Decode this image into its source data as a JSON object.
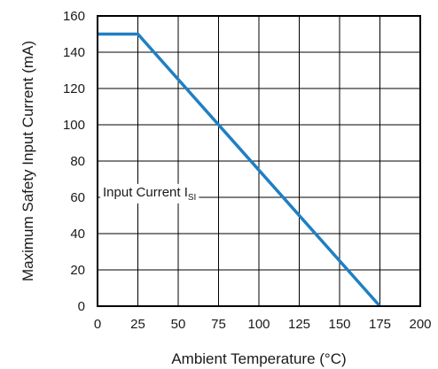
{
  "chart_data": {
    "type": "line",
    "xlabel": "Ambient Temperature (°C)",
    "ylabel": "Maximum Safety Input Current (mA)",
    "xlim": [
      0,
      200
    ],
    "ylim": [
      0,
      160
    ],
    "x_ticks": [
      0,
      25,
      50,
      75,
      100,
      125,
      150,
      175,
      200
    ],
    "y_ticks": [
      0,
      20,
      40,
      60,
      80,
      100,
      120,
      140,
      160
    ],
    "grid": true,
    "series": [
      {
        "name": "Input Current ISI",
        "color": "#1f7fc4",
        "x": [
          0,
          25,
          175
        ],
        "y": [
          150,
          150,
          0
        ]
      }
    ],
    "annotations": [
      {
        "text": "Input Current I",
        "subscript": "SI",
        "x": 0,
        "y": 63
      }
    ]
  }
}
